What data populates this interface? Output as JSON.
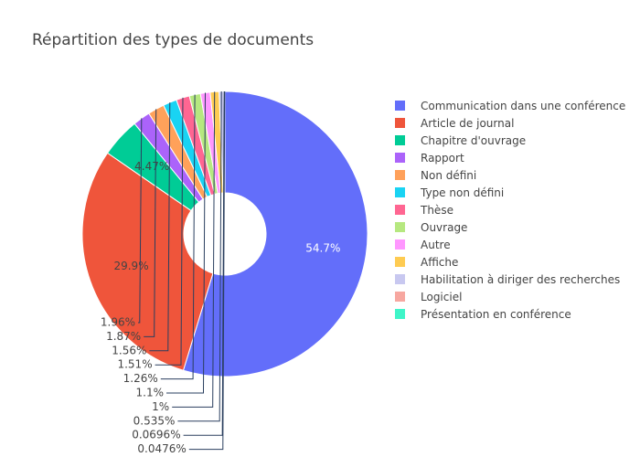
{
  "chart_data": {
    "type": "pie",
    "title": "Répartition des types de documents",
    "hole": true,
    "labels": [
      "Communication dans une conférence",
      "Article de journal",
      "Chapitre d'ouvrage",
      "Rapport",
      "Non défini",
      "Type non défini",
      "Thèse",
      "Ouvrage",
      "Autre",
      "Affiche",
      "Habilitation à diriger des recherches",
      "Logiciel",
      "Présentation en conférence"
    ],
    "values": [
      54.7,
      29.9,
      4.47,
      1.96,
      1.87,
      1.56,
      1.51,
      1.26,
      1.1,
      1,
      0.535,
      0.0696,
      0.0476
    ],
    "text_labels": [
      "54.7%",
      "29.9%",
      "4.47%",
      "1.96%",
      "1.87%",
      "1.56%",
      "1.51%",
      "1.26%",
      "1.1%",
      "1%",
      "0.535%",
      "0.0696%",
      "0.0476%"
    ],
    "colors": [
      "#636efa",
      "#EF553B",
      "#00cc96",
      "#ab63fa",
      "#FFA15A",
      "#19d3f3",
      "#FF6692",
      "#B6E880",
      "#FF97FF",
      "#FECB52",
      "#c8c8f0",
      "#f7a7a0",
      "#3ff5c8"
    ],
    "legend_position": "right"
  }
}
